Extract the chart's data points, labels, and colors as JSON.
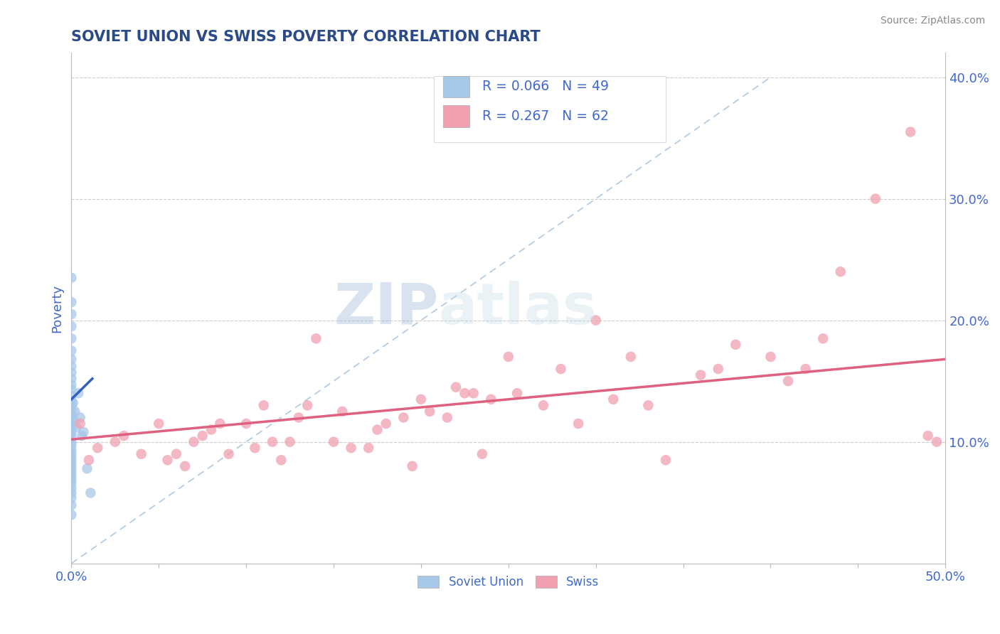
{
  "title": "SOVIET UNION VS SWISS POVERTY CORRELATION CHART",
  "source_text": "Source: ZipAtlas.com",
  "ylabel": "Poverty",
  "xlim": [
    0.0,
    0.5
  ],
  "ylim": [
    0.0,
    0.42
  ],
  "x_ticks": [
    0.0,
    0.05,
    0.1,
    0.15,
    0.2,
    0.25,
    0.3,
    0.35,
    0.4,
    0.45,
    0.5
  ],
  "x_tick_labels_show": {
    "0.0": "0.0%",
    "0.5": "50.0%"
  },
  "y_ticks_right": [
    0.1,
    0.2,
    0.3,
    0.4
  ],
  "y_tick_labels_right": [
    "10.0%",
    "20.0%",
    "30.0%",
    "40.0%"
  ],
  "legend_r1": "R = 0.066",
  "legend_n1": "N = 49",
  "legend_r2": "R = 0.267",
  "legend_n2": "N = 62",
  "legend_label1": "Soviet Union",
  "legend_label2": "Swiss",
  "color_soviet": "#a8c8e8",
  "color_swiss": "#f0a0b0",
  "color_soviet_line": "#3060c0",
  "color_swiss_line": "#e06080",
  "color_diag": "#b0c8e0",
  "watermark_zip": "ZIP",
  "watermark_atlas": "atlas",
  "soviet_x": [
    0.0,
    0.0,
    0.0,
    0.0,
    0.0,
    0.0,
    0.0,
    0.0,
    0.0,
    0.0,
    0.0,
    0.0,
    0.0,
    0.0,
    0.0,
    0.0,
    0.0,
    0.0,
    0.0,
    0.0,
    0.0,
    0.0,
    0.0,
    0.0,
    0.0,
    0.0,
    0.0,
    0.0,
    0.0,
    0.0,
    0.0,
    0.0,
    0.0,
    0.0,
    0.0,
    0.0,
    0.0,
    0.0,
    0.0,
    0.001,
    0.001,
    0.002,
    0.003,
    0.004,
    0.005,
    0.006,
    0.007,
    0.009,
    0.011
  ],
  "soviet_y": [
    0.235,
    0.215,
    0.205,
    0.195,
    0.185,
    0.175,
    0.168,
    0.162,
    0.157,
    0.152,
    0.147,
    0.143,
    0.138,
    0.134,
    0.13,
    0.126,
    0.122,
    0.118,
    0.114,
    0.11,
    0.107,
    0.104,
    0.1,
    0.097,
    0.093,
    0.09,
    0.087,
    0.084,
    0.081,
    0.078,
    0.075,
    0.072,
    0.069,
    0.066,
    0.062,
    0.058,
    0.054,
    0.048,
    0.04,
    0.132,
    0.118,
    0.125,
    0.112,
    0.14,
    0.12,
    0.105,
    0.108,
    0.078,
    0.058
  ],
  "swiss_x": [
    0.005,
    0.01,
    0.015,
    0.025,
    0.03,
    0.04,
    0.05,
    0.055,
    0.06,
    0.065,
    0.07,
    0.075,
    0.08,
    0.085,
    0.09,
    0.1,
    0.105,
    0.11,
    0.115,
    0.12,
    0.125,
    0.13,
    0.135,
    0.14,
    0.15,
    0.155,
    0.16,
    0.17,
    0.175,
    0.18,
    0.19,
    0.195,
    0.2,
    0.205,
    0.215,
    0.22,
    0.225,
    0.23,
    0.235,
    0.24,
    0.25,
    0.255,
    0.27,
    0.28,
    0.29,
    0.3,
    0.31,
    0.32,
    0.33,
    0.34,
    0.36,
    0.37,
    0.38,
    0.4,
    0.41,
    0.42,
    0.43,
    0.44,
    0.46,
    0.48,
    0.49,
    0.495
  ],
  "swiss_y": [
    0.115,
    0.085,
    0.095,
    0.1,
    0.105,
    0.09,
    0.115,
    0.085,
    0.09,
    0.08,
    0.1,
    0.105,
    0.11,
    0.115,
    0.09,
    0.115,
    0.095,
    0.13,
    0.1,
    0.085,
    0.1,
    0.12,
    0.13,
    0.185,
    0.1,
    0.125,
    0.095,
    0.095,
    0.11,
    0.115,
    0.12,
    0.08,
    0.135,
    0.125,
    0.12,
    0.145,
    0.14,
    0.14,
    0.09,
    0.135,
    0.17,
    0.14,
    0.13,
    0.16,
    0.115,
    0.2,
    0.135,
    0.17,
    0.13,
    0.085,
    0.155,
    0.16,
    0.18,
    0.17,
    0.15,
    0.16,
    0.185,
    0.24,
    0.3,
    0.355,
    0.105,
    0.1
  ],
  "background_color": "#ffffff",
  "grid_color": "#cccccc",
  "title_color": "#2a4a8a",
  "tick_color": "#4169CD",
  "legend_text_color": "#4169CD",
  "swiss_line_start_x": 0.0,
  "swiss_line_end_x": 0.5,
  "swiss_line_start_y": 0.102,
  "swiss_line_end_y": 0.168,
  "soviet_line_start_x": 0.0,
  "soviet_line_end_x": 0.012,
  "soviet_line_start_y": 0.135,
  "soviet_line_end_y": 0.152
}
